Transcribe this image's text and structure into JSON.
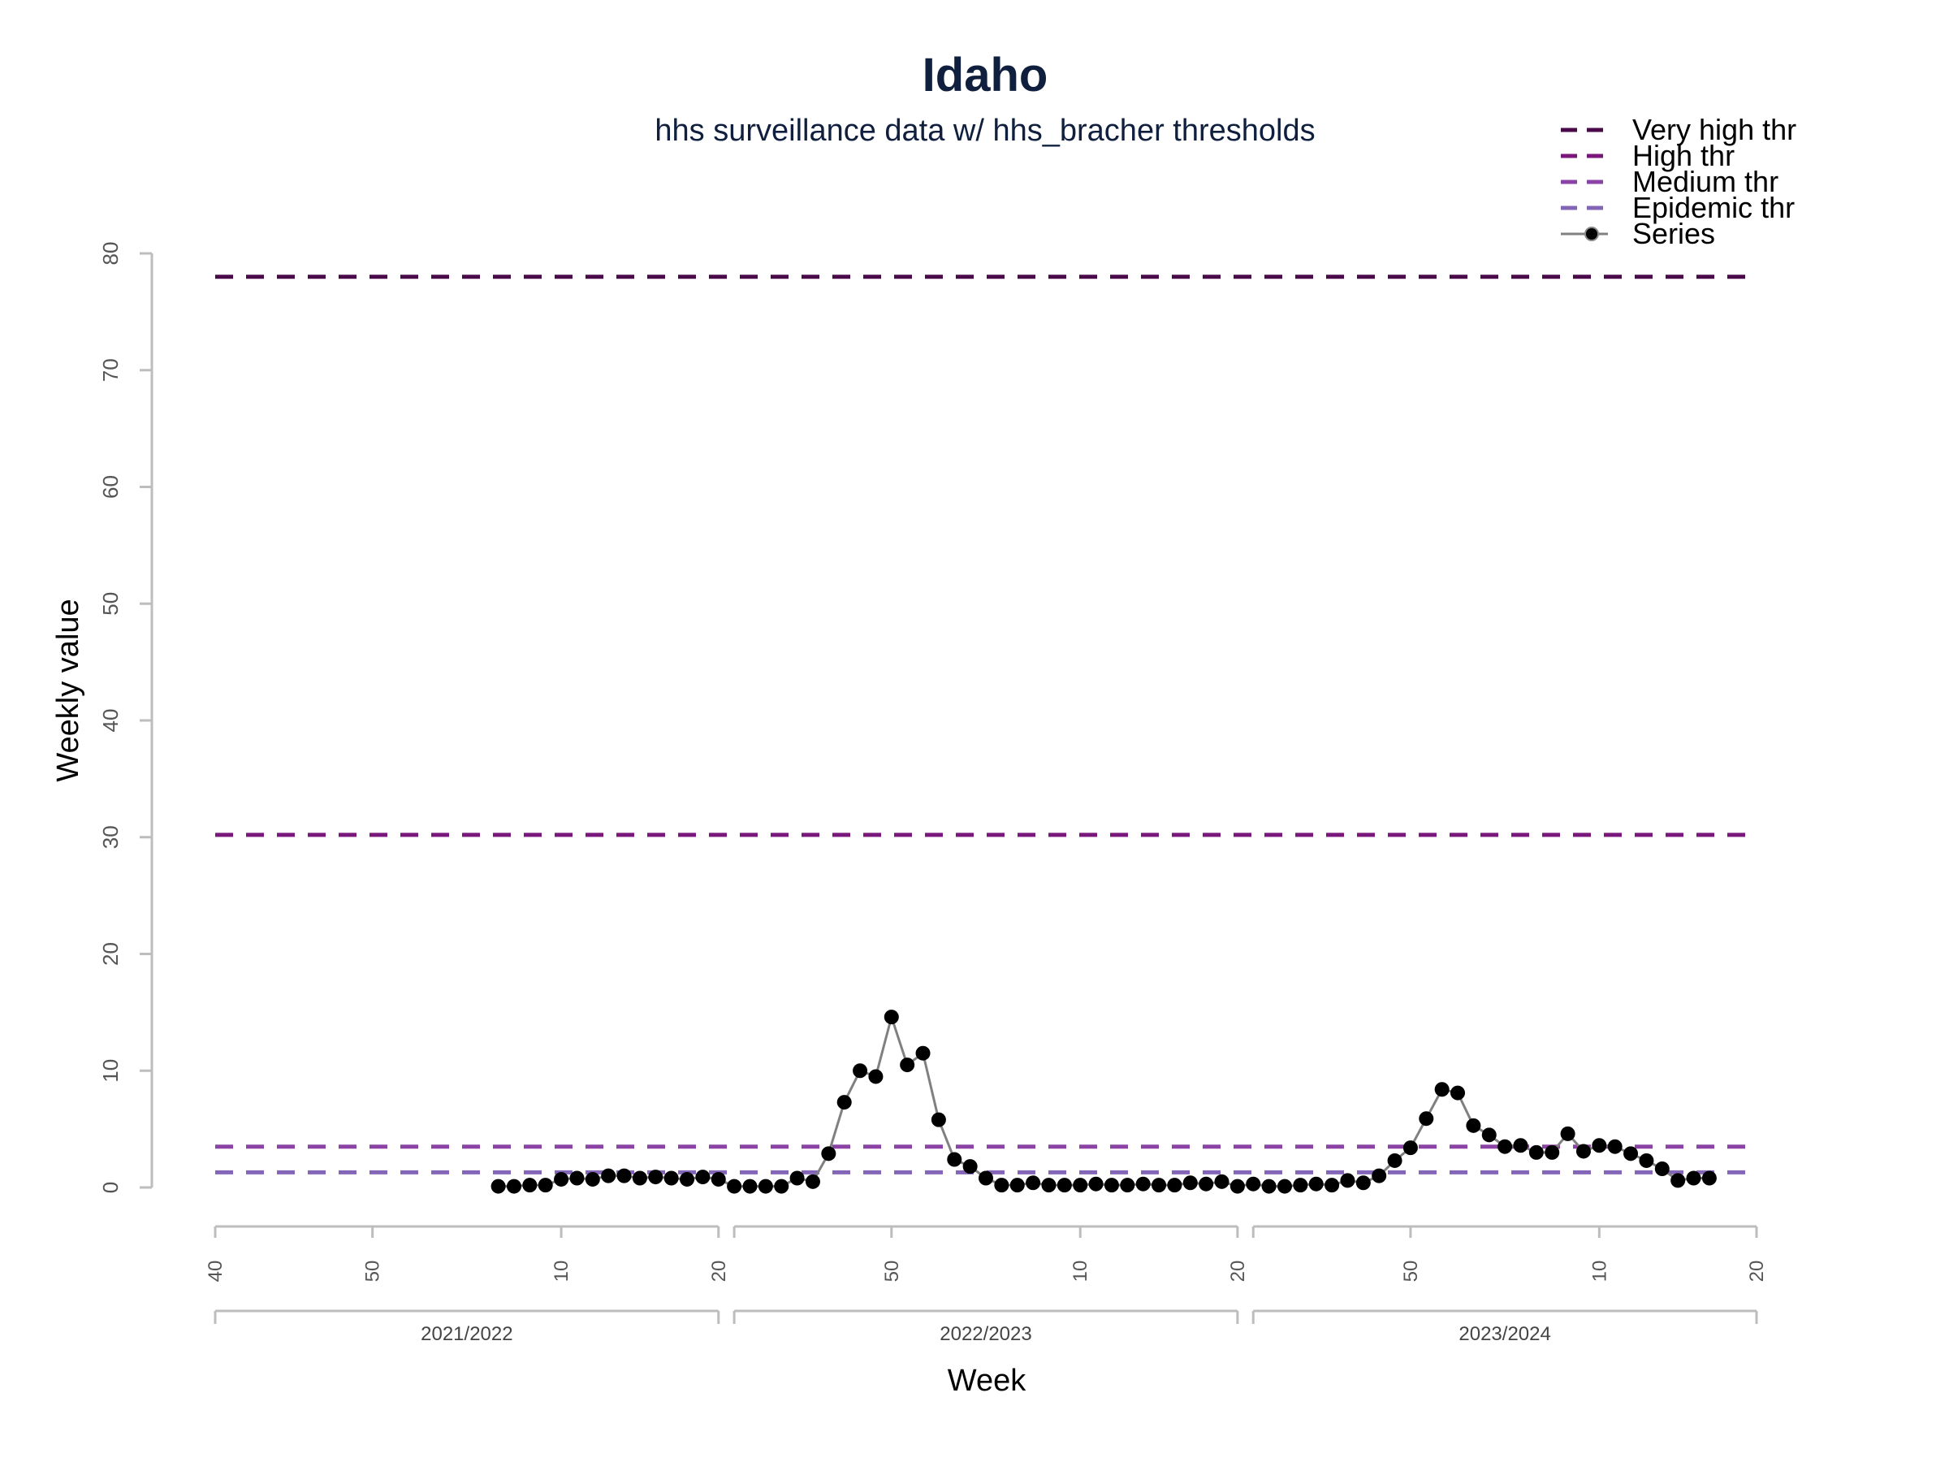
{
  "chart_data": {
    "type": "line",
    "title": "Idaho",
    "subtitle": "hhs surveillance data w/ hhs_bracher thresholds",
    "xlabel": "Week",
    "ylabel": "Weekly value",
    "ylim": [
      0,
      80
    ],
    "y_ticks": [
      "0",
      "10",
      "20",
      "30",
      "40",
      "50",
      "60",
      "70",
      "80"
    ],
    "grid": false,
    "legend_position": "top-right",
    "seasons": [
      {
        "label": "2021/2022",
        "ticks": [
          {
            "index": 0,
            "label": "40"
          },
          {
            "index": 10,
            "label": "50"
          },
          {
            "index": 22,
            "label": "10"
          },
          {
            "index": 32,
            "label": "20"
          }
        ]
      },
      {
        "label": "2022/2023",
        "ticks": [
          {
            "index": 33,
            "label": ""
          },
          {
            "index": 43,
            "label": "50"
          },
          {
            "index": 55,
            "label": "10"
          },
          {
            "index": 65,
            "label": "20"
          }
        ]
      },
      {
        "label": "2023/2024",
        "ticks": [
          {
            "index": 66,
            "label": ""
          },
          {
            "index": 76,
            "label": "50"
          },
          {
            "index": 88,
            "label": "10"
          },
          {
            "index": 98,
            "label": "20"
          }
        ]
      }
    ],
    "thresholds": [
      {
        "name": "Very high thr",
        "value": 78,
        "color": "#4a0a4a"
      },
      {
        "name": "High thr",
        "value": 30.2,
        "color": "#7a177a"
      },
      {
        "name": "Medium thr",
        "value": 3.5,
        "color": "#8b44a5"
      },
      {
        "name": "Epidemic thr",
        "value": 1.3,
        "color": "#8466b8"
      }
    ],
    "series": [
      {
        "name": "Series",
        "color": "#000000",
        "line_color": "#808080",
        "x": [
          18,
          19,
          20,
          21,
          22,
          23,
          24,
          25,
          26,
          27,
          28,
          29,
          30,
          31,
          32,
          33,
          34,
          35,
          36,
          37,
          38,
          39,
          40,
          41,
          42,
          43,
          44,
          45,
          46,
          47,
          48,
          49,
          50,
          51,
          52,
          53,
          54,
          55,
          56,
          57,
          58,
          59,
          60,
          61,
          62,
          63,
          64,
          65,
          66,
          67,
          68,
          69,
          70,
          71,
          72,
          73,
          74,
          75,
          76,
          77,
          78,
          79,
          80,
          81,
          82,
          83,
          84,
          85,
          86,
          87,
          88,
          89,
          90,
          91,
          92,
          93,
          94,
          95
        ],
        "values": [
          0.1,
          0.1,
          0.2,
          0.2,
          0.7,
          0.8,
          0.7,
          1.0,
          1.0,
          0.8,
          0.9,
          0.8,
          0.7,
          0.9,
          0.7,
          0.1,
          0.1,
          0.1,
          0.1,
          0.8,
          0.5,
          2.9,
          7.3,
          10.0,
          9.5,
          14.6,
          10.5,
          11.5,
          5.8,
          2.4,
          1.8,
          0.8,
          0.2,
          0.2,
          0.4,
          0.2,
          0.2,
          0.2,
          0.3,
          0.2,
          0.2,
          0.3,
          0.2,
          0.2,
          0.4,
          0.3,
          0.5,
          0.1,
          0.3,
          0.1,
          0.1,
          0.2,
          0.3,
          0.2,
          0.6,
          0.4,
          1.0,
          2.3,
          3.4,
          5.9,
          8.4,
          8.1,
          5.3,
          4.5,
          3.5,
          3.6,
          3.0,
          3.0,
          4.6,
          3.1,
          3.6,
          3.5,
          2.9,
          2.3,
          1.6,
          0.6,
          0.8,
          0.8
        ]
      }
    ]
  }
}
